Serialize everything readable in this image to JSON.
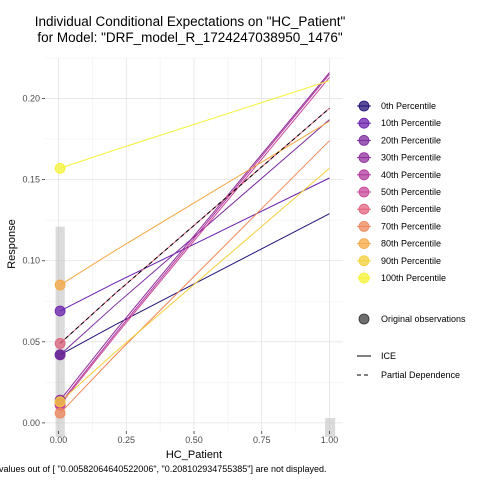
{
  "chart_data": {
    "type": "line",
    "title": "Individual Conditional Expectations on \"HC_Patient\"",
    "subtitle": "for Model: \"DRF_model_R_1724247038950_1476\"",
    "xlabel": "HC_Patient",
    "ylabel": "Response",
    "xlim": [
      -0.05,
      1.05
    ],
    "ylim": [
      -0.005,
      0.225
    ],
    "xticks": [
      0.0,
      0.25,
      0.5,
      0.75,
      1.0
    ],
    "xtick_labels": [
      "0.00",
      "0.25",
      "0.50",
      "0.75",
      "1.00"
    ],
    "yticks": [
      0.0,
      0.05,
      0.1,
      0.15,
      0.2
    ],
    "ytick_labels": [
      "0.00",
      "0.05",
      "0.10",
      "0.15",
      "0.20"
    ],
    "grid": true,
    "legend_position": "right",
    "caption": "values out of [ \"0.00582064640522006\",  \"0.208102934755385\"] are not displayed.",
    "x": [
      0.0058,
      0.2081,
      1.0
    ],
    "series": [
      {
        "name": "0th Percentile",
        "color": "#221177",
        "values": [
          0.042,
          0.0604,
          0.129
        ]
      },
      {
        "name": "10th Percentile",
        "color": "#6a1fae",
        "values": [
          0.069,
          0.0863,
          0.151
        ]
      },
      {
        "name": "20th Percentile",
        "color": "#7b2a9e",
        "values": [
          0.042,
          0.0725,
          0.187
        ]
      },
      {
        "name": "30th Percentile",
        "color": "#8f2d9c",
        "values": [
          0.014,
          0.0565,
          0.216
        ]
      },
      {
        "name": "40th Percentile",
        "color": "#b0379c",
        "values": [
          0.012,
          0.0547,
          0.215
        ]
      },
      {
        "name": "50th Percentile",
        "color": "#c9479a",
        "values": [
          0.011,
          0.0534,
          0.213
        ]
      },
      {
        "name": "60th Percentile",
        "color": "#e0617f",
        "values": [
          0.049,
          0.0796,
          0.194
        ]
      },
      {
        "name": "70th Percentile",
        "color": "#ee8559",
        "values": [
          0.006,
          0.0414,
          0.174
        ]
      },
      {
        "name": "80th Percentile",
        "color": "#f5a742",
        "values": [
          0.085,
          0.1062,
          0.186
        ]
      },
      {
        "name": "90th Percentile",
        "color": "#f4cf38",
        "values": [
          0.013,
          0.0435,
          0.157
        ]
      },
      {
        "name": "100th Percentile",
        "color": "#f5f233",
        "values": [
          0.157,
          0.1683,
          0.211
        ]
      }
    ],
    "pdp": {
      "name": "Partial Dependence",
      "values": [
        0.049,
        0.0796,
        0.194
      ]
    },
    "original_observations": [
      {
        "x": 0.0058,
        "y": 0.042,
        "color": "#221177"
      },
      {
        "x": 0.0058,
        "y": 0.069,
        "color": "#6a1fae"
      },
      {
        "x": 0.0058,
        "y": 0.042,
        "color": "#7b2a9e"
      },
      {
        "x": 0.0058,
        "y": 0.014,
        "color": "#8f2d9c"
      },
      {
        "x": 0.0058,
        "y": 0.012,
        "color": "#b0379c"
      },
      {
        "x": 0.0058,
        "y": 0.011,
        "color": "#c9479a"
      },
      {
        "x": 0.0058,
        "y": 0.049,
        "color": "#e0617f"
      },
      {
        "x": 0.0058,
        "y": 0.006,
        "color": "#ee8559"
      },
      {
        "x": 0.0058,
        "y": 0.085,
        "color": "#f5a742"
      },
      {
        "x": 0.0058,
        "y": 0.013,
        "color": "#f4cf38"
      },
      {
        "x": 0.0058,
        "y": 0.157,
        "color": "#f5f233"
      }
    ],
    "rug_bars": [
      {
        "x_from": 0.0,
        "x_to": 0.012,
        "y": 0.121
      },
      {
        "x_from": 0.995,
        "x_to": 1.01,
        "y": 0.003
      }
    ],
    "legend_original": "Original observations",
    "legend_ice": "ICE",
    "legend_pdp": "Partial Dependence"
  }
}
